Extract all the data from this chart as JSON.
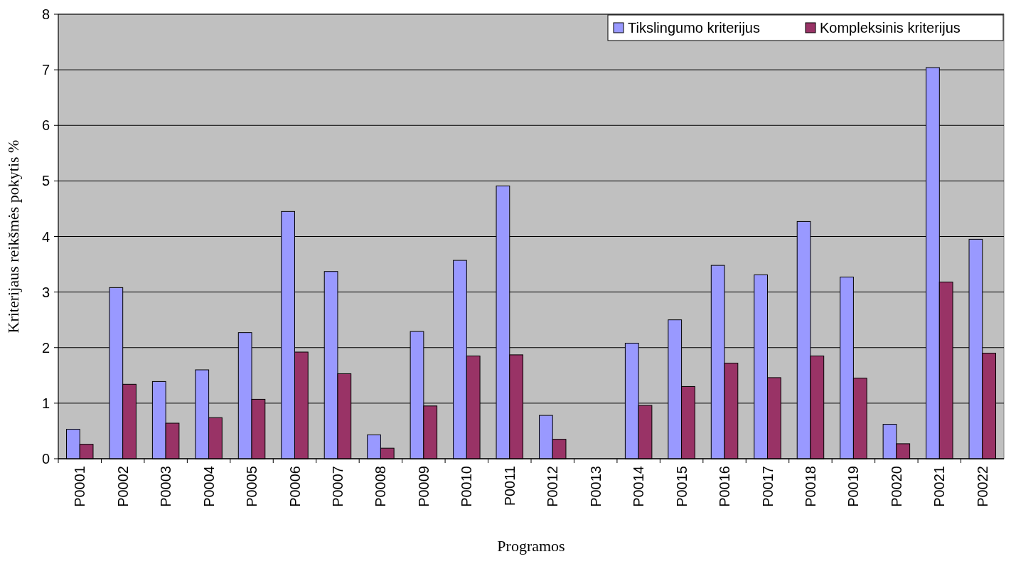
{
  "chart_data": {
    "type": "bar",
    "xlabel": "Programos",
    "ylabel": "Kriterijaus reikšmės pokytis %",
    "categories": [
      "P0001",
      "P0002",
      "P0003",
      "P0004",
      "P0005",
      "P0006",
      "P0007",
      "P0008",
      "P0009",
      "P0010",
      "P0011",
      "P0012",
      "P0013",
      "P0014",
      "P0015",
      "P0016",
      "P0017",
      "P0018",
      "P0019",
      "P0020",
      "P0021",
      "P0022"
    ],
    "series": [
      {
        "name": "Tikslingumo kriterijus",
        "color": "#9999ff",
        "values": [
          0.53,
          3.08,
          1.39,
          1.6,
          2.27,
          4.45,
          3.37,
          0.43,
          2.29,
          3.57,
          4.91,
          0.78,
          0,
          2.08,
          2.5,
          3.48,
          3.31,
          4.27,
          3.27,
          0.62,
          7.04,
          3.95
        ]
      },
      {
        "name": "Kompleksinis kriterijus",
        "color": "#993366",
        "values": [
          0.26,
          1.34,
          0.64,
          0.74,
          1.07,
          1.92,
          1.53,
          0.19,
          0.95,
          1.85,
          1.87,
          0.35,
          0,
          0.96,
          1.3,
          1.72,
          1.46,
          1.85,
          1.45,
          0.27,
          3.18,
          1.9
        ]
      }
    ],
    "ylim": [
      0,
      8
    ],
    "yticks": [
      0,
      1,
      2,
      3,
      4,
      5,
      6,
      7,
      8
    ],
    "grid": "y",
    "legend": "top right"
  }
}
